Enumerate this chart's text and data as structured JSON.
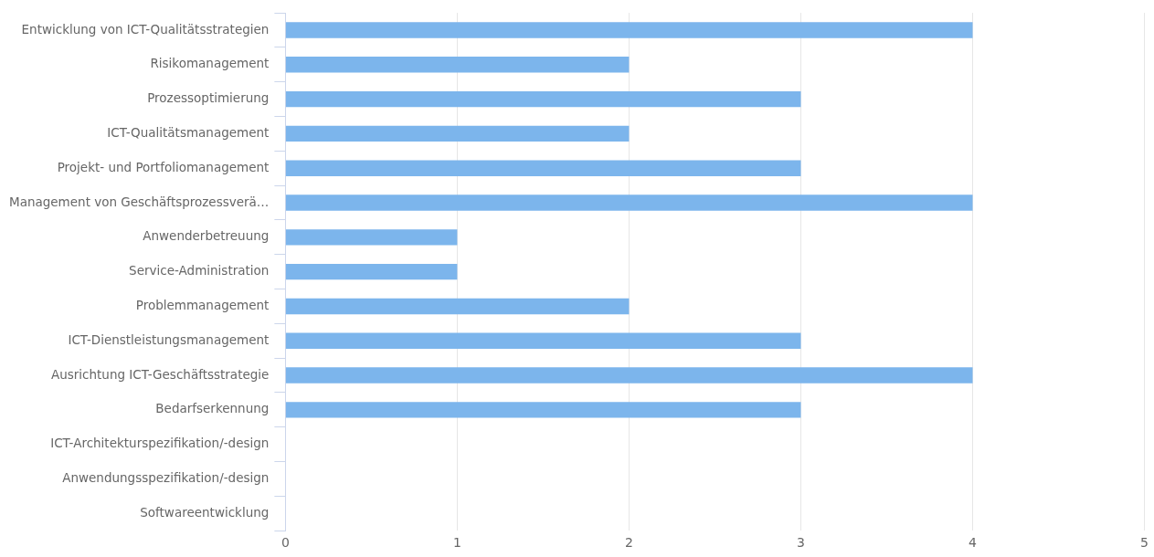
{
  "chart_data": {
    "type": "bar",
    "orientation": "horizontal",
    "categories": [
      "Entwicklung von ICT-Qualitätsstrategien",
      "Risikomanagement",
      "Prozessoptimierung",
      "ICT-Qualitätsmanagement",
      "Projekt- und Portfoliomanagement",
      "Management von Geschäftsprozessverä…",
      "Anwenderbetreuung",
      "Service-Administration",
      "Problemmanagement",
      "ICT-Dienstleistungsmanagement",
      "Ausrichtung ICT-Geschäftsstrategie",
      "Bedarfserkennung",
      "ICT-Architekturspezifikation/-design",
      "Anwendungsspezifikation/-design",
      "Softwareentwicklung"
    ],
    "values": [
      4,
      2,
      3,
      2,
      3,
      4,
      1,
      1,
      2,
      3,
      4,
      3,
      0,
      0,
      0
    ],
    "color": "#7cb5ec",
    "xlim": [
      0,
      5
    ],
    "xticks": [
      0,
      1,
      2,
      3,
      4,
      5
    ],
    "grid": "x"
  }
}
